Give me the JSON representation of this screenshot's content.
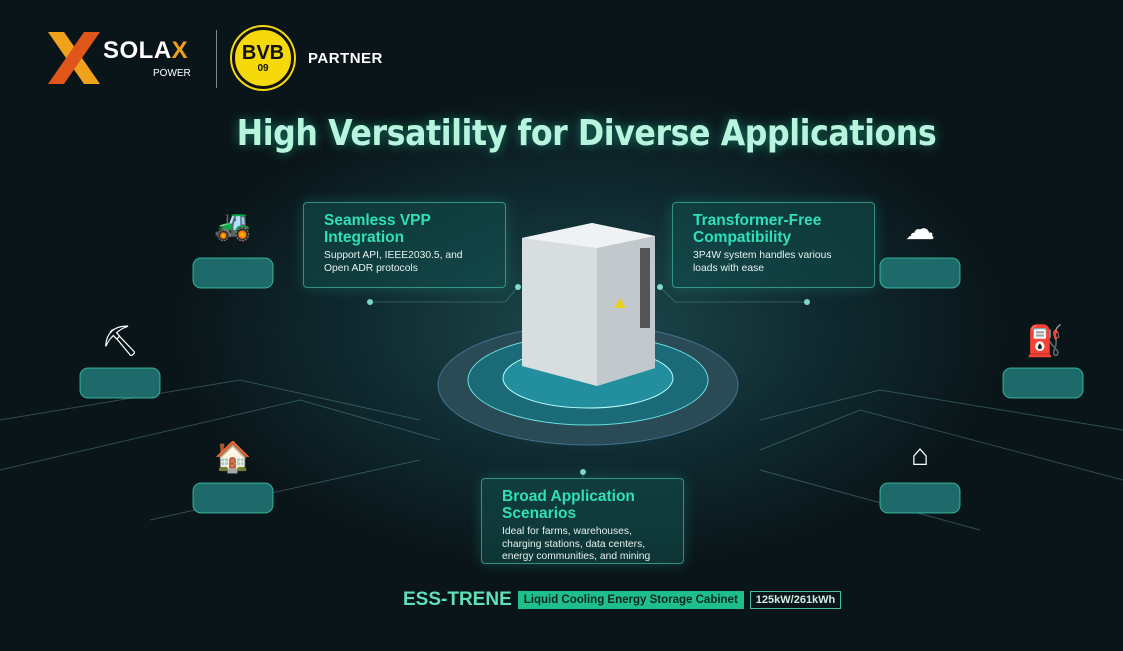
{
  "header": {
    "brand": "SOLA",
    "brand_x": "X",
    "brand_sub": "POWER",
    "club_top": "BVB",
    "club_bottom": "09",
    "partner": "PARTNER"
  },
  "title": "High Versatility for Diverse Applications",
  "features": [
    {
      "title": "Seamless VPP Integration",
      "text": "Support API, IEEE2030.5, and Open ADR protocols"
    },
    {
      "title": "Transformer-Free Compatibility",
      "text": "3P4W system handles various loads with ease"
    },
    {
      "title": "Broad Application Scenarios",
      "text": "Ideal for farms, warehouses, charging stations, data centers, energy communities, and mining"
    }
  ],
  "applications": [
    "farm-icon",
    "mining-icon",
    "warehouse-icon",
    "data-center-cloud-icon",
    "charging-station-icon",
    "energy-community-home-icon"
  ],
  "footer": {
    "product": "ESS-TRENE",
    "description": "Liquid Cooling Energy Storage Cabinet",
    "capacity": "125kW/261kWh"
  },
  "colors": {
    "accent": "#2fe0b8",
    "background": "#0a1418",
    "brand_orange": "#f0a21a",
    "bvb_yellow": "#f5d90a"
  }
}
